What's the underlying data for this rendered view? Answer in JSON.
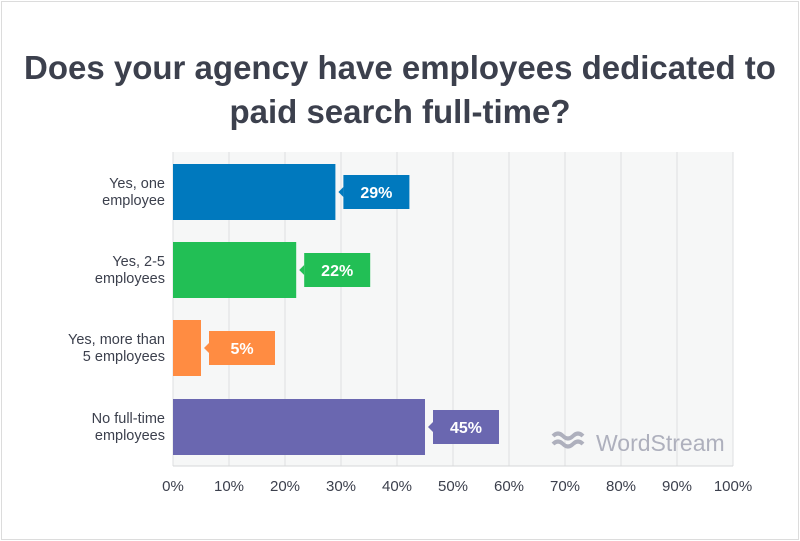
{
  "chart_data": {
    "type": "bar",
    "orientation": "horizontal",
    "title": "Does your agency have employees dedicated to paid search full-time?",
    "categories": [
      [
        "Yes, one",
        "employee"
      ],
      [
        "Yes, 2-5",
        "employees"
      ],
      [
        "Yes, more than",
        "5 employees"
      ],
      [
        "No full-time",
        "employees"
      ]
    ],
    "values": [
      29,
      22,
      5,
      45
    ],
    "data_labels": [
      "29%",
      "22%",
      "5%",
      "45%"
    ],
    "colors": [
      "#0079be",
      "#22bf55",
      "#ff8c42",
      "#6a67b0"
    ],
    "xlim": [
      0,
      100
    ],
    "xticks": [
      "0%",
      "10%",
      "20%",
      "30%",
      "40%",
      "50%",
      "60%",
      "70%",
      "80%",
      "90%",
      "100%"
    ],
    "grid": true,
    "xlabel": "",
    "ylabel": ""
  },
  "watermark": "WordStream"
}
